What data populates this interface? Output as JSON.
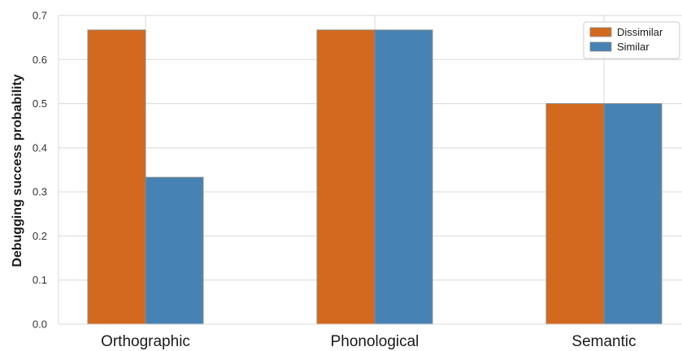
{
  "chart_data": {
    "type": "bar",
    "categories": [
      "Orthographic",
      "Phonological",
      "Semantic"
    ],
    "series": [
      {
        "name": "Dissimilar",
        "values": [
          0.667,
          0.667,
          0.5
        ],
        "color": "#D2691E"
      },
      {
        "name": "Similar",
        "values": [
          0.333,
          0.667,
          0.5
        ],
        "color": "#4682B4"
      }
    ],
    "ylabel": "Debugging success probability",
    "xlabel": "",
    "ylim": [
      0,
      0.7
    ],
    "yticks": [
      "0.0",
      "0.1",
      "0.2",
      "0.3",
      "0.4",
      "0.5",
      "0.6",
      "0.7"
    ],
    "grid": true,
    "legend_position": "top-right"
  }
}
